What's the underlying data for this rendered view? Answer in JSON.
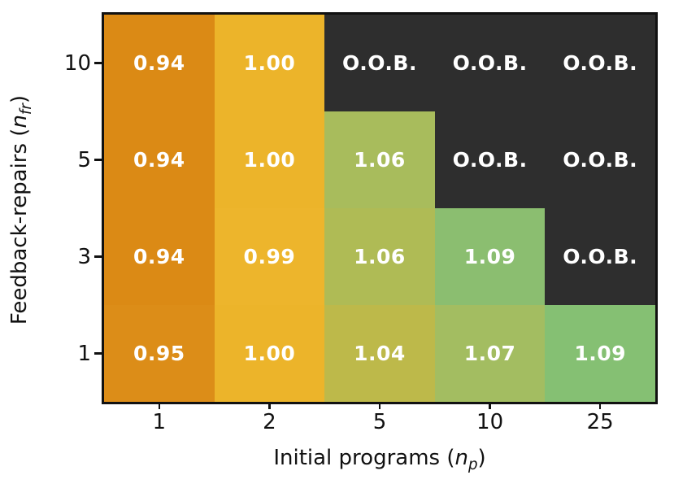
{
  "figure": {
    "background_color": "#ffffff",
    "border_color": "#111111"
  },
  "chart_data": {
    "type": "heatmap",
    "xlabel": {
      "prefix": "Initial programs (",
      "var": "n",
      "sub": "p",
      "suffix": ")"
    },
    "ylabel": {
      "prefix": "Feedback-repairs (",
      "var": "n",
      "sub": "fr",
      "suffix": ")"
    },
    "x_tick_labels": [
      "1",
      "2",
      "5",
      "10",
      "25"
    ],
    "y_tick_labels": [
      "10",
      "5",
      "3",
      "1"
    ],
    "value_text_color": "#ffffff",
    "oob_label": "O.O.B.",
    "oob_color": "#2e2e2e",
    "legend": "none",
    "grid": "off",
    "rows": [
      {
        "y": "10",
        "cells": [
          {
            "x": "1",
            "label": "0.94",
            "value": 0.94,
            "color": "#db8a15"
          },
          {
            "x": "2",
            "label": "1.00",
            "value": 1.0,
            "color": "#ecb42a"
          },
          {
            "x": "5",
            "label": "O.O.B.",
            "value": null,
            "color": "#2e2e2e"
          },
          {
            "x": "10",
            "label": "O.O.B.",
            "value": null,
            "color": "#2e2e2e"
          },
          {
            "x": "25",
            "label": "O.O.B.",
            "value": null,
            "color": "#2e2e2e"
          }
        ]
      },
      {
        "y": "5",
        "cells": [
          {
            "x": "1",
            "label": "0.94",
            "value": 0.94,
            "color": "#db8a15"
          },
          {
            "x": "2",
            "label": "1.00",
            "value": 1.0,
            "color": "#ecb42a"
          },
          {
            "x": "5",
            "label": "1.06",
            "value": 1.06,
            "color": "#a8bc5c"
          },
          {
            "x": "10",
            "label": "O.O.B.",
            "value": null,
            "color": "#2e2e2e"
          },
          {
            "x": "25",
            "label": "O.O.B.",
            "value": null,
            "color": "#2e2e2e"
          }
        ]
      },
      {
        "y": "3",
        "cells": [
          {
            "x": "1",
            "label": "0.94",
            "value": 0.94,
            "color": "#db8a15"
          },
          {
            "x": "2",
            "label": "0.99",
            "value": 0.99,
            "color": "#edb52c"
          },
          {
            "x": "5",
            "label": "1.06",
            "value": 1.06,
            "color": "#afbb55"
          },
          {
            "x": "10",
            "label": "1.09",
            "value": 1.09,
            "color": "#8bbe70"
          },
          {
            "x": "25",
            "label": "O.O.B.",
            "value": null,
            "color": "#2e2e2e"
          }
        ]
      },
      {
        "y": "1",
        "cells": [
          {
            "x": "1",
            "label": "0.95",
            "value": 0.95,
            "color": "#dc8d18"
          },
          {
            "x": "2",
            "label": "1.00",
            "value": 1.0,
            "color": "#ecb42a"
          },
          {
            "x": "5",
            "label": "1.04",
            "value": 1.04,
            "color": "#bdb94a"
          },
          {
            "x": "10",
            "label": "1.07",
            "value": 1.07,
            "color": "#a3bd61"
          },
          {
            "x": "25",
            "label": "1.09",
            "value": 1.09,
            "color": "#85c073"
          }
        ]
      }
    ]
  }
}
